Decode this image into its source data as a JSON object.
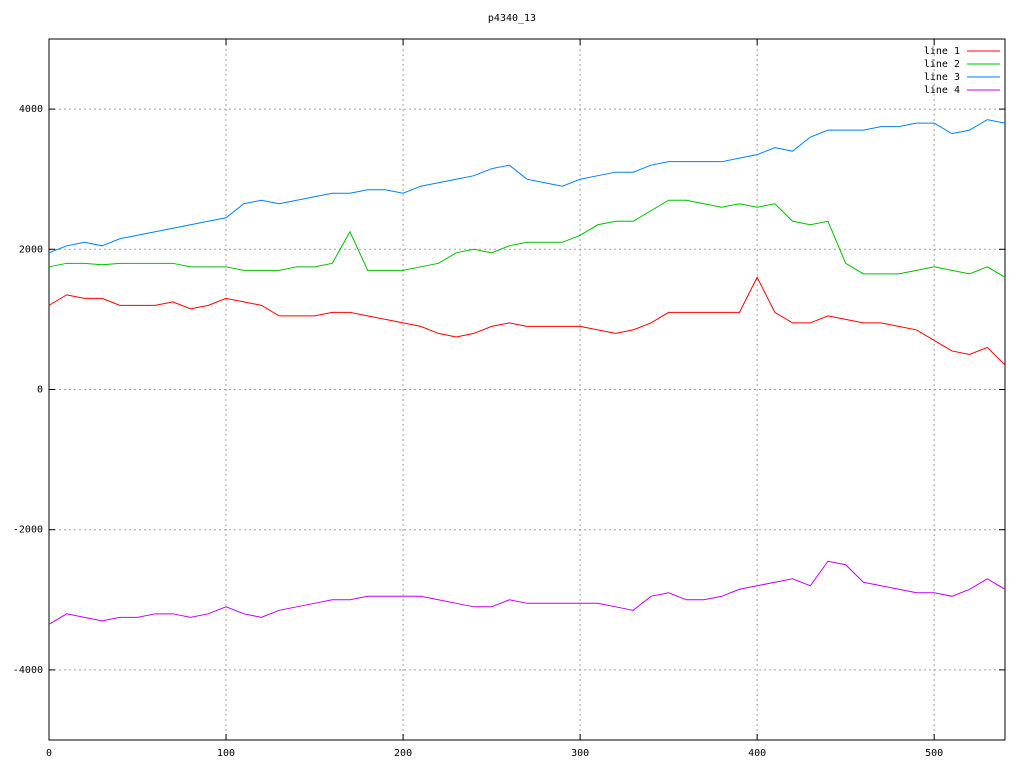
{
  "chart_data": {
    "type": "line",
    "title": "p4340_13",
    "x": [
      0,
      10,
      20,
      30,
      40,
      50,
      60,
      70,
      80,
      90,
      100,
      110,
      120,
      130,
      140,
      150,
      160,
      170,
      180,
      190,
      200,
      210,
      220,
      230,
      240,
      250,
      260,
      270,
      280,
      290,
      300,
      310,
      320,
      330,
      340,
      350,
      360,
      370,
      380,
      390,
      400,
      410,
      420,
      430,
      440,
      450,
      460,
      470,
      480,
      490,
      500,
      510,
      520,
      530,
      540
    ],
    "series": [
      {
        "name": "line 1",
        "color": "#ff0000",
        "values": [
          1200,
          1350,
          1300,
          1300,
          1200,
          1200,
          1200,
          1250,
          1150,
          1200,
          1300,
          1250,
          1200,
          1050,
          1050,
          1050,
          1100,
          1100,
          1050,
          1000,
          950,
          900,
          800,
          750,
          800,
          900,
          950,
          900,
          900,
          900,
          900,
          850,
          800,
          850,
          950,
          1100,
          1100,
          1100,
          1100,
          1100,
          1600,
          1100,
          950,
          950,
          1050,
          1000,
          950,
          950,
          900,
          850,
          700,
          550,
          500,
          600,
          350
        ]
      },
      {
        "name": "line 2",
        "color": "#00c000",
        "values": [
          1750,
          1800,
          1800,
          1780,
          1800,
          1800,
          1800,
          1800,
          1750,
          1750,
          1750,
          1700,
          1700,
          1700,
          1750,
          1750,
          1800,
          2250,
          1700,
          1700,
          1700,
          1750,
          1800,
          1950,
          2000,
          1950,
          2050,
          2100,
          2100,
          2100,
          2200,
          2350,
          2400,
          2400,
          2550,
          2700,
          2700,
          2650,
          2600,
          2650,
          2600,
          2650,
          2400,
          2350,
          2400,
          1800,
          1650,
          1650,
          1650,
          1700,
          1750,
          1700,
          1650,
          1750,
          1600
        ]
      },
      {
        "name": "line 3",
        "color": "#0080ff",
        "values": [
          1950,
          2050,
          2100,
          2050,
          2150,
          2200,
          2250,
          2300,
          2350,
          2400,
          2450,
          2650,
          2700,
          2650,
          2700,
          2750,
          2800,
          2800,
          2850,
          2850,
          2800,
          2900,
          2950,
          3000,
          3050,
          3150,
          3200,
          3000,
          2950,
          2900,
          3000,
          3050,
          3100,
          3100,
          3200,
          3250,
          3250,
          3250,
          3250,
          3300,
          3350,
          3450,
          3400,
          3600,
          3700,
          3700,
          3700,
          3750,
          3750,
          3800,
          3800,
          3650,
          3700,
          3850,
          3800
        ]
      },
      {
        "name": "line 4",
        "color": "#c000ff",
        "values": [
          -3350,
          -3200,
          -3250,
          -3300,
          -3250,
          -3250,
          -3200,
          -3200,
          -3250,
          -3200,
          -3100,
          -3200,
          -3250,
          -3150,
          -3100,
          -3050,
          -3000,
          -3000,
          -2950,
          -2950,
          -2950,
          -2950,
          -3000,
          -3050,
          -3100,
          -3100,
          -3000,
          -3050,
          -3050,
          -3050,
          -3050,
          -3050,
          -3100,
          -3150,
          -2950,
          -2900,
          -3000,
          -3000,
          -2950,
          -2850,
          -2800,
          -2750,
          -2700,
          -2800,
          -2450,
          -2500,
          -2750,
          -2800,
          -2850,
          -2900,
          -2900,
          -2950,
          -2850,
          -2700,
          -2850
        ]
      }
    ],
    "xlim": [
      0,
      540
    ],
    "xticks": [
      0,
      100,
      200,
      300,
      400,
      500
    ],
    "ylim": [
      -5000,
      5000
    ],
    "yticks": [
      -4000,
      -2000,
      0,
      2000,
      4000
    ],
    "grid": true,
    "legend": "top-right"
  }
}
